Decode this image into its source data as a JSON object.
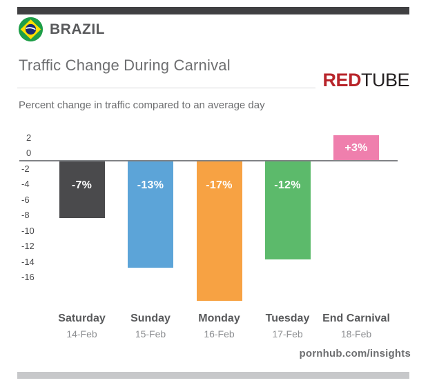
{
  "header": {
    "country": "BRAZIL"
  },
  "title": "Traffic Change During Carnival",
  "subtitle": "Percent change in traffic compared to an average day",
  "logo": {
    "red": "RED",
    "tube": "TUBE"
  },
  "footer": {
    "site": "pornhub.com/insights"
  },
  "colors": {
    "accent_red": "#b8242a",
    "dark_bar": "#404042",
    "axis_line": "#808285",
    "bottom_bar": "#c7c8ca"
  },
  "chart_data": {
    "type": "bar",
    "title": "Traffic Change During Carnival",
    "subtitle": "Percent change in traffic compared to an average day",
    "categories": [
      "Saturday",
      "Sunday",
      "Monday",
      "Tuesday",
      "End Carnival"
    ],
    "dates": [
      "14-Feb",
      "15-Feb",
      "16-Feb",
      "17-Feb",
      "18-Feb"
    ],
    "values": [
      -7,
      -13,
      -17,
      -12,
      3
    ],
    "data_labels": [
      "-7%",
      "-13%",
      "-17%",
      "-12%",
      "+3%"
    ],
    "bar_colors": [
      "#4a4a4c",
      "#5ca4d8",
      "#f7a243",
      "#5cba6b",
      "#ef7fad"
    ],
    "yticks": [
      2,
      0,
      -2,
      -4,
      -6,
      -8,
      -10,
      -12,
      -14,
      -16
    ],
    "ylim": [
      -19,
      3.5
    ],
    "xlabel": "",
    "ylabel": "",
    "grid": false,
    "legend": null,
    "baseline": 0
  }
}
